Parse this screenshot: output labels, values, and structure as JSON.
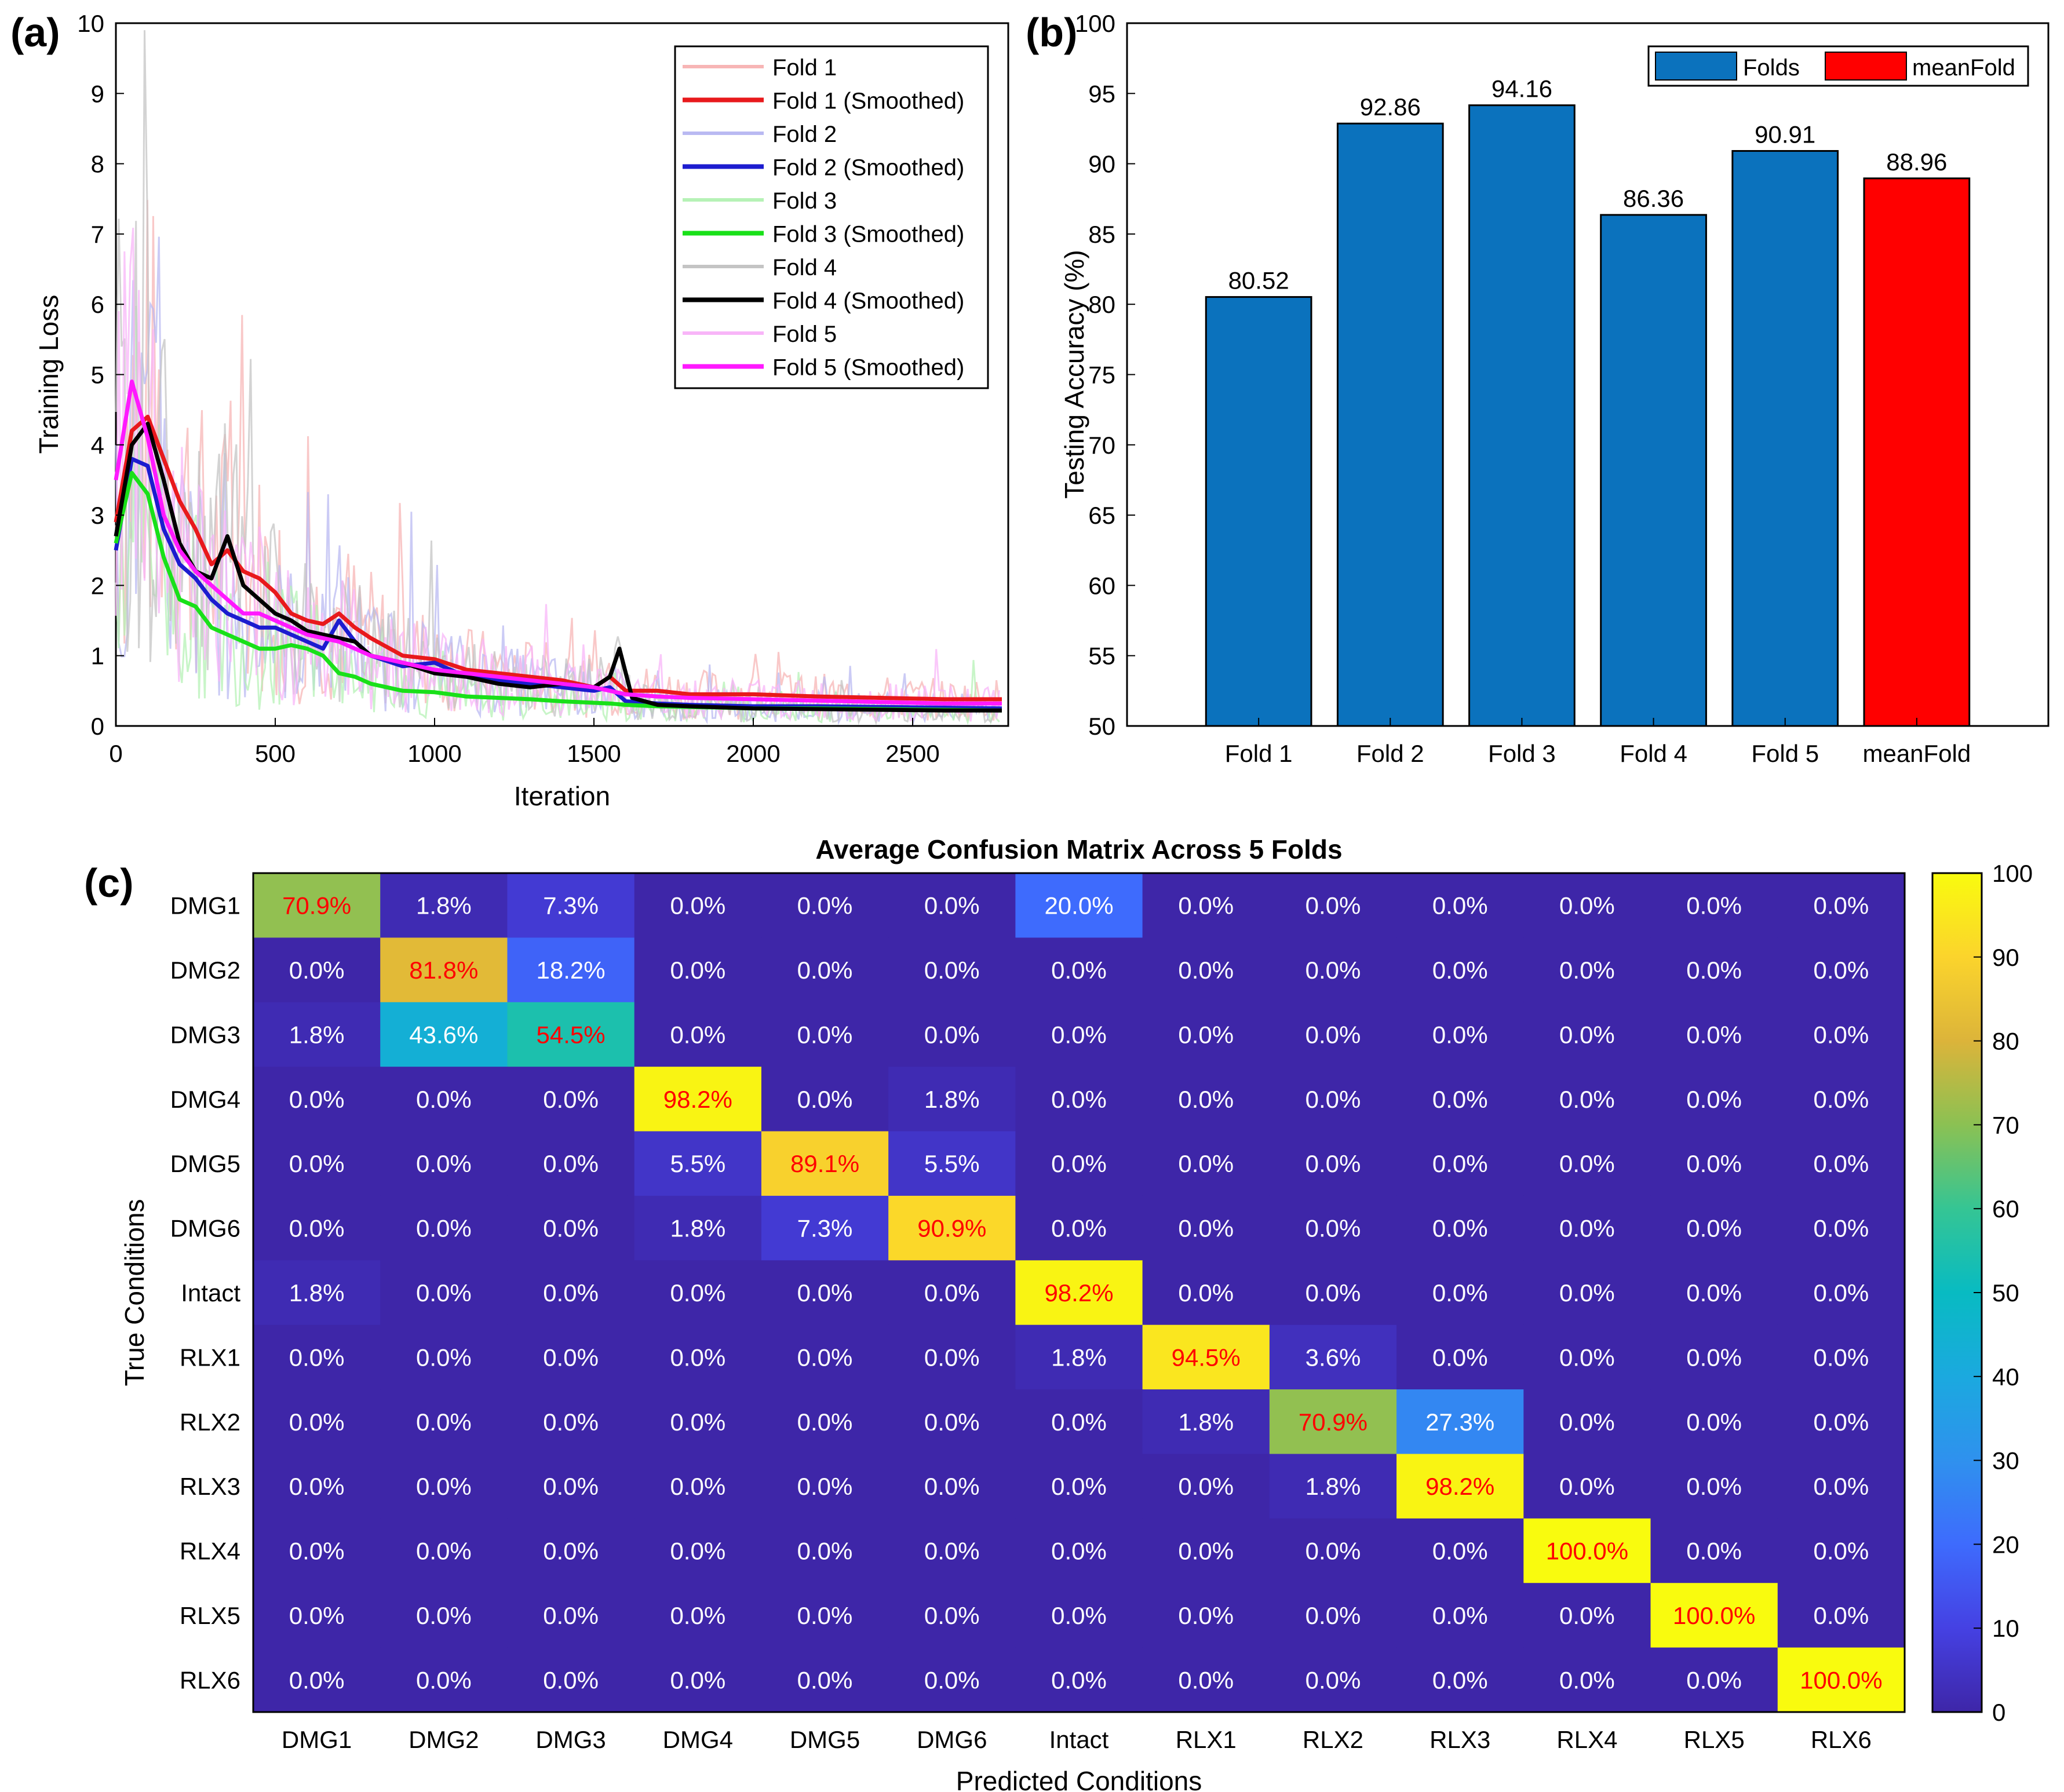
{
  "panels": {
    "a": "(a)",
    "b": "(b)",
    "c": "(c)"
  },
  "colors": {
    "fold1": "#e8191c",
    "fold2": "#1c1ccf",
    "fold3": "#19e019",
    "fold4": "#000000",
    "fold5": "#ff19ff",
    "bar_folds": "#0b72bd",
    "bar_mean": "#ff0000",
    "diag_text": "#ff0000",
    "offdiag_text": "#ffffff"
  },
  "chart_data": [
    {
      "id": "training-loss",
      "type": "line",
      "title": "",
      "xlabel": "Iteration",
      "ylabel": "Training Loss",
      "xlim": [
        0,
        2800
      ],
      "ylim": [
        0,
        10
      ],
      "xticks": [
        0,
        500,
        1000,
        1500,
        2000,
        2500
      ],
      "yticks": [
        0,
        1,
        2,
        3,
        4,
        5,
        6,
        7,
        8,
        9,
        10
      ],
      "legend_position": "top-right",
      "legend": [
        "Fold 1",
        "Fold 1 (Smoothed)",
        "Fold 2",
        "Fold 2 (Smoothed)",
        "Fold 3",
        "Fold 3 (Smoothed)",
        "Fold 4",
        "Fold 4 (Smoothed)",
        "Fold 5",
        "Fold 5 (Smoothed)"
      ],
      "series": [
        {
          "name": "Fold 1 (Smoothed)",
          "x": [
            0,
            50,
            100,
            150,
            200,
            250,
            300,
            350,
            400,
            450,
            500,
            550,
            600,
            650,
            700,
            750,
            800,
            900,
            1000,
            1100,
            1200,
            1300,
            1400,
            1500,
            1550,
            1600,
            1700,
            1800,
            2000,
            2200,
            2400,
            2600,
            2780
          ],
          "y": [
            2.9,
            4.2,
            4.4,
            3.8,
            3.2,
            2.8,
            2.3,
            2.5,
            2.2,
            2.1,
            1.9,
            1.6,
            1.5,
            1.45,
            1.6,
            1.4,
            1.25,
            1.0,
            0.95,
            0.8,
            0.75,
            0.7,
            0.65,
            0.55,
            0.7,
            0.5,
            0.5,
            0.45,
            0.45,
            0.42,
            0.4,
            0.38,
            0.38
          ]
        },
        {
          "name": "Fold 2 (Smoothed)",
          "x": [
            0,
            50,
            100,
            150,
            200,
            250,
            300,
            350,
            400,
            450,
            500,
            550,
            600,
            650,
            700,
            750,
            800,
            900,
            1000,
            1100,
            1200,
            1300,
            1400,
            1500,
            1550,
            1600,
            1700,
            1800,
            2000,
            2200,
            2400,
            2600,
            2780
          ],
          "y": [
            2.5,
            3.8,
            3.7,
            2.8,
            2.3,
            2.1,
            1.8,
            1.6,
            1.5,
            1.4,
            1.4,
            1.3,
            1.2,
            1.1,
            1.5,
            1.2,
            1.0,
            0.85,
            0.9,
            0.7,
            0.65,
            0.6,
            0.55,
            0.5,
            0.55,
            0.35,
            0.32,
            0.3,
            0.28,
            0.28,
            0.27,
            0.26,
            0.25
          ]
        },
        {
          "name": "Fold 3 (Smoothed)",
          "x": [
            0,
            50,
            100,
            150,
            200,
            250,
            300,
            350,
            400,
            450,
            500,
            550,
            600,
            650,
            700,
            750,
            800,
            900,
            1000,
            1100,
            1200,
            1300,
            1400,
            1500,
            1550,
            1600,
            1700,
            1800,
            2000,
            2200,
            2400,
            2600,
            2780
          ],
          "y": [
            2.6,
            3.6,
            3.3,
            2.4,
            1.8,
            1.7,
            1.4,
            1.3,
            1.2,
            1.1,
            1.1,
            1.15,
            1.1,
            1.0,
            0.75,
            0.7,
            0.6,
            0.5,
            0.48,
            0.42,
            0.4,
            0.38,
            0.35,
            0.33,
            0.32,
            0.3,
            0.28,
            0.27,
            0.25,
            0.25,
            0.24,
            0.23,
            0.22
          ]
        },
        {
          "name": "Fold 4 (Smoothed)",
          "x": [
            0,
            50,
            100,
            150,
            200,
            250,
            300,
            350,
            400,
            450,
            500,
            550,
            600,
            650,
            700,
            750,
            800,
            900,
            1000,
            1100,
            1200,
            1300,
            1400,
            1500,
            1550,
            1580,
            1620,
            1700,
            1800,
            2000,
            2200,
            2400,
            2600,
            2780
          ],
          "y": [
            2.7,
            4.0,
            4.3,
            3.5,
            2.6,
            2.2,
            2.1,
            2.7,
            2.0,
            1.8,
            1.6,
            1.5,
            1.35,
            1.3,
            1.25,
            1.2,
            1.0,
            0.9,
            0.75,
            0.7,
            0.6,
            0.55,
            0.6,
            0.55,
            0.7,
            1.1,
            0.4,
            0.3,
            0.28,
            0.25,
            0.24,
            0.23,
            0.22,
            0.22
          ]
        },
        {
          "name": "Fold 5 (Smoothed)",
          "x": [
            0,
            50,
            100,
            150,
            200,
            250,
            300,
            350,
            400,
            450,
            500,
            550,
            600,
            650,
            700,
            750,
            800,
            900,
            1000,
            1100,
            1200,
            1300,
            1400,
            1500,
            1550,
            1600,
            1700,
            1800,
            2000,
            2200,
            2400,
            2600,
            2780
          ],
          "y": [
            3.5,
            4.9,
            4.1,
            3.0,
            2.5,
            2.2,
            2.0,
            1.8,
            1.6,
            1.6,
            1.5,
            1.4,
            1.3,
            1.25,
            1.2,
            1.1,
            1.0,
            0.9,
            0.8,
            0.75,
            0.7,
            0.65,
            0.6,
            0.55,
            0.5,
            0.45,
            0.42,
            0.4,
            0.38,
            0.36,
            0.34,
            0.32,
            0.32
          ]
        }
      ]
    },
    {
      "id": "testing-accuracy",
      "type": "bar",
      "title": "",
      "xlabel": "",
      "ylabel": "Testing Accuracy (%)",
      "ylim": [
        50,
        100
      ],
      "yticks": [
        50,
        55,
        60,
        65,
        70,
        75,
        80,
        85,
        90,
        95,
        100
      ],
      "categories": [
        "Fold 1",
        "Fold 2",
        "Fold 3",
        "Fold 4",
        "Fold 5",
        "meanFold"
      ],
      "values": [
        80.52,
        92.86,
        94.16,
        86.36,
        90.91,
        88.96
      ],
      "value_labels": [
        "80.52",
        "92.86",
        "94.16",
        "86.36",
        "90.91",
        "88.96"
      ],
      "legend_position": "top-right",
      "legend": [
        "Folds",
        "meanFold"
      ]
    },
    {
      "id": "confusion-matrix",
      "type": "heatmap",
      "title": "Average Confusion Matrix Across 5 Folds",
      "xlabel": "Predicted Conditions",
      "ylabel": "True Conditions",
      "classes": [
        "DMG1",
        "DMG2",
        "DMG3",
        "DMG4",
        "DMG5",
        "DMG6",
        "Intact",
        "RLX1",
        "RLX2",
        "RLX3",
        "RLX4",
        "RLX5",
        "RLX6"
      ],
      "colorbar_range": [
        0,
        100
      ],
      "colorbar_ticks": [
        0,
        10,
        20,
        30,
        40,
        50,
        60,
        70,
        80,
        90,
        100
      ],
      "values": [
        [
          70.9,
          1.8,
          7.3,
          0.0,
          0.0,
          0.0,
          20.0,
          0.0,
          0.0,
          0.0,
          0.0,
          0.0,
          0.0
        ],
        [
          0.0,
          81.8,
          18.2,
          0.0,
          0.0,
          0.0,
          0.0,
          0.0,
          0.0,
          0.0,
          0.0,
          0.0,
          0.0
        ],
        [
          1.8,
          43.6,
          54.5,
          0.0,
          0.0,
          0.0,
          0.0,
          0.0,
          0.0,
          0.0,
          0.0,
          0.0,
          0.0
        ],
        [
          0.0,
          0.0,
          0.0,
          98.2,
          0.0,
          1.8,
          0.0,
          0.0,
          0.0,
          0.0,
          0.0,
          0.0,
          0.0
        ],
        [
          0.0,
          0.0,
          0.0,
          5.5,
          89.1,
          5.5,
          0.0,
          0.0,
          0.0,
          0.0,
          0.0,
          0.0,
          0.0
        ],
        [
          0.0,
          0.0,
          0.0,
          1.8,
          7.3,
          90.9,
          0.0,
          0.0,
          0.0,
          0.0,
          0.0,
          0.0,
          0.0
        ],
        [
          1.8,
          0.0,
          0.0,
          0.0,
          0.0,
          0.0,
          98.2,
          0.0,
          0.0,
          0.0,
          0.0,
          0.0,
          0.0
        ],
        [
          0.0,
          0.0,
          0.0,
          0.0,
          0.0,
          0.0,
          1.8,
          94.5,
          3.6,
          0.0,
          0.0,
          0.0,
          0.0
        ],
        [
          0.0,
          0.0,
          0.0,
          0.0,
          0.0,
          0.0,
          0.0,
          1.8,
          70.9,
          27.3,
          0.0,
          0.0,
          0.0
        ],
        [
          0.0,
          0.0,
          0.0,
          0.0,
          0.0,
          0.0,
          0.0,
          0.0,
          1.8,
          98.2,
          0.0,
          0.0,
          0.0
        ],
        [
          0.0,
          0.0,
          0.0,
          0.0,
          0.0,
          0.0,
          0.0,
          0.0,
          0.0,
          0.0,
          100.0,
          0.0,
          0.0
        ],
        [
          0.0,
          0.0,
          0.0,
          0.0,
          0.0,
          0.0,
          0.0,
          0.0,
          0.0,
          0.0,
          0.0,
          100.0,
          0.0
        ],
        [
          0.0,
          0.0,
          0.0,
          0.0,
          0.0,
          0.0,
          0.0,
          0.0,
          0.0,
          0.0,
          0.0,
          0.0,
          100.0
        ]
      ]
    }
  ]
}
